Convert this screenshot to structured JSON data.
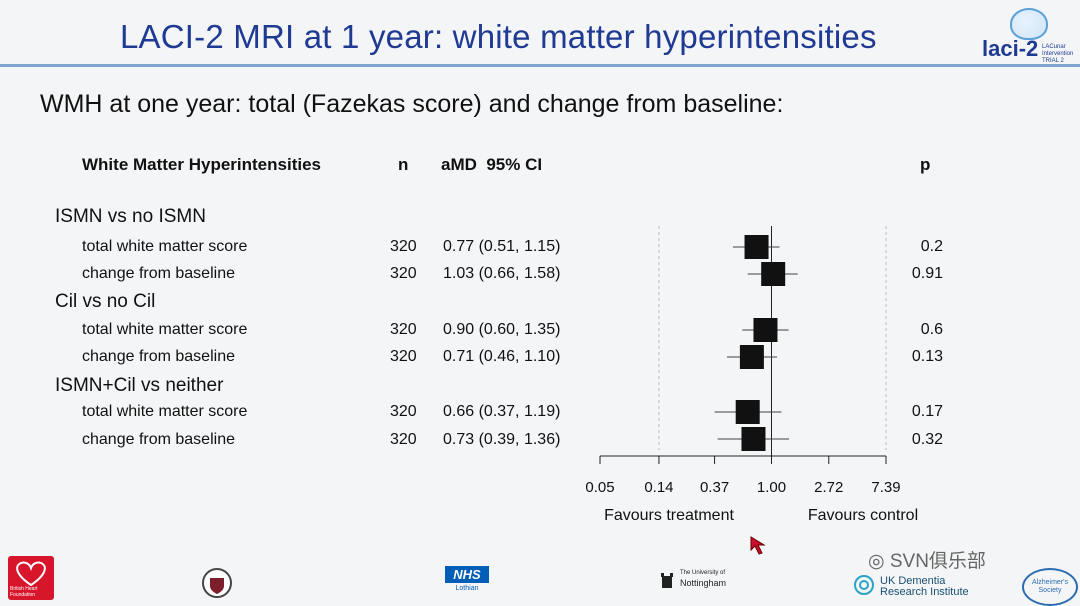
{
  "slide": {
    "title": "LACI-2 MRI at 1 year: white matter hyperintensities",
    "subtitle": "WMH at one year: total (Fazekas score) and change from baseline:",
    "logo_text": "laci-2",
    "logo_sub_lines": [
      "LACunar",
      "Intervention",
      "TRIAL 2"
    ]
  },
  "table_header": {
    "label": "White Matter Hyperintensities",
    "n": "n",
    "estimate": "aMD  95% CI",
    "p": "p"
  },
  "groups": [
    {
      "name": "ISMN vs no ISMN",
      "rows": [
        {
          "label": "total white matter score",
          "n": "320",
          "ci_text": "0.77 (0.51, 1.15)",
          "p": "0.2"
        },
        {
          "label": "change from baseline",
          "n": "320",
          "ci_text": "1.03 (0.66, 1.58)",
          "p": "0.91"
        }
      ]
    },
    {
      "name": "Cil vs no Cil",
      "rows": [
        {
          "label": "total white matter score",
          "n": "320",
          "ci_text": "0.90 (0.60, 1.35)",
          "p": "0.6"
        },
        {
          "label": "change from baseline",
          "n": "320",
          "ci_text": "0.71 (0.46, 1.10)",
          "p": "0.13"
        }
      ]
    },
    {
      "name": "ISMN+Cil vs neither",
      "rows": [
        {
          "label": "total white matter score",
          "n": "320",
          "ci_text": "0.66 (0.37, 1.19)",
          "p": "0.17"
        },
        {
          "label": "change from baseline",
          "n": "320",
          "ci_text": "0.73 (0.39, 1.36)",
          "p": "0.32"
        }
      ]
    }
  ],
  "chart_data": {
    "type": "forest",
    "x_scale": "log",
    "xlim": [
      0.05,
      7.39
    ],
    "x_ticks": [
      0.05,
      0.14,
      0.37,
      1.0,
      2.72,
      7.39
    ],
    "x_tick_labels": [
      "0.05",
      "0.14",
      "0.37",
      "1.00",
      "2.72",
      "7.39"
    ],
    "reference_line": 1.0,
    "dashed_lines": [
      0.14,
      7.39
    ],
    "favours_left": "Favours treatment",
    "favours_right": "Favours control",
    "points": [
      {
        "estimate": 0.77,
        "lower": 0.51,
        "upper": 1.15
      },
      {
        "estimate": 1.03,
        "lower": 0.66,
        "upper": 1.58
      },
      {
        "estimate": 0.9,
        "lower": 0.6,
        "upper": 1.35
      },
      {
        "estimate": 0.71,
        "lower": 0.46,
        "upper": 1.1
      },
      {
        "estimate": 0.66,
        "lower": 0.37,
        "upper": 1.19
      },
      {
        "estimate": 0.73,
        "lower": 0.39,
        "upper": 1.36
      }
    ]
  },
  "footer": {
    "logos": [
      "British Heart Foundation",
      "NHS",
      "Lothian",
      "The University of",
      "Nottingham",
      "UK Dementia",
      "Research Institute",
      "Alzheimer's Society"
    ],
    "watermark": "SVN俱乐部",
    "bhf_color": "#d7152b",
    "nhs_color": "#005eb8"
  }
}
